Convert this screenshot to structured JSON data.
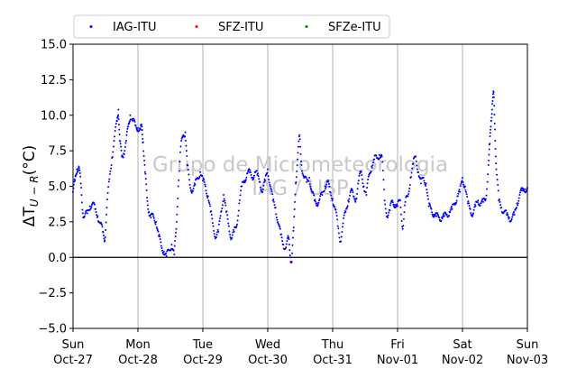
{
  "chart_data": {
    "type": "scatter",
    "ylabel": "ΔT_{U-R}(°C)",
    "ylim": [
      -5.0,
      15.0
    ],
    "yticks": [
      "−5.0",
      "−2.5",
      "0.0",
      "2.5",
      "5.0",
      "7.5",
      "10.0",
      "12.5",
      "15.0"
    ],
    "ytick_values": [
      -5.0,
      -2.5,
      0.0,
      2.5,
      5.0,
      7.5,
      10.0,
      12.5,
      15.0
    ],
    "xlim_days": [
      0,
      7
    ],
    "xticks": [
      {
        "day": "Sun",
        "date": "Oct-27"
      },
      {
        "day": "Mon",
        "date": "Oct-28"
      },
      {
        "day": "Tue",
        "date": "Oct-29"
      },
      {
        "day": "Wed",
        "date": "Oct-30"
      },
      {
        "day": "Thu",
        "date": "Oct-31"
      },
      {
        "day": "Fri",
        "date": "Nov-01"
      },
      {
        "day": "Sat",
        "date": "Nov-02"
      },
      {
        "day": "Sun",
        "date": "Nov-03"
      }
    ],
    "grid": "vertical",
    "hline": 0.0,
    "legend": {
      "placement": "top",
      "entries": [
        {
          "name": "IAG-ITU",
          "color": "#0000ff"
        },
        {
          "name": "SFZ-ITU",
          "color": "#ff0000"
        },
        {
          "name": "SFZe-ITU",
          "color": "#008000"
        }
      ]
    },
    "watermark": [
      "Grupo de Micrometeorologia",
      "IAG / USP"
    ],
    "series": [
      {
        "name": "IAG-ITU",
        "color": "#0000ff",
        "points": [
          [
            0.0,
            4.6
          ],
          [
            0.03,
            5.4
          ],
          [
            0.06,
            6.2
          ],
          [
            0.09,
            6.4
          ],
          [
            0.12,
            5.2
          ],
          [
            0.15,
            3.1
          ],
          [
            0.18,
            2.9
          ],
          [
            0.22,
            3.1
          ],
          [
            0.26,
            3.6
          ],
          [
            0.3,
            3.8
          ],
          [
            0.34,
            3.4
          ],
          [
            0.38,
            2.9
          ],
          [
            0.42,
            2.4
          ],
          [
            0.46,
            1.8
          ],
          [
            0.49,
            1.2
          ],
          [
            0.52,
            3.5
          ],
          [
            0.56,
            5.5
          ],
          [
            0.6,
            7.0
          ],
          [
            0.64,
            8.5
          ],
          [
            0.68,
            9.6
          ],
          [
            0.7,
            10.4
          ],
          [
            0.72,
            8.2
          ],
          [
            0.75,
            7.1
          ],
          [
            0.78,
            7.3
          ],
          [
            0.82,
            8.2
          ],
          [
            0.85,
            9.2
          ],
          [
            0.88,
            10.0
          ],
          [
            0.92,
            9.6
          ],
          [
            0.96,
            9.3
          ],
          [
            1.0,
            9.1
          ],
          [
            1.04,
            9.0
          ],
          [
            1.06,
            9.2
          ],
          [
            1.08,
            8.1
          ],
          [
            1.11,
            6.0
          ],
          [
            1.14,
            4.2
          ],
          [
            1.17,
            3.2
          ],
          [
            1.2,
            2.8
          ],
          [
            1.24,
            2.9
          ],
          [
            1.28,
            2.5
          ],
          [
            1.32,
            1.5
          ],
          [
            1.36,
            0.8
          ],
          [
            1.4,
            0.4
          ],
          [
            1.44,
            0.1
          ],
          [
            1.48,
            0.5
          ],
          [
            1.52,
            0.9
          ],
          [
            1.56,
            0.2
          ],
          [
            1.59,
            2.0
          ],
          [
            1.62,
            5.0
          ],
          [
            1.66,
            7.8
          ],
          [
            1.7,
            8.6
          ],
          [
            1.73,
            8.8
          ],
          [
            1.76,
            6.5
          ],
          [
            1.8,
            5.1
          ],
          [
            1.84,
            4.7
          ],
          [
            1.88,
            5.1
          ],
          [
            1.92,
            5.6
          ],
          [
            1.96,
            6.0
          ],
          [
            2.0,
            5.4
          ],
          [
            2.04,
            5.0
          ],
          [
            2.08,
            4.3
          ],
          [
            2.12,
            3.2
          ],
          [
            2.16,
            2.2
          ],
          [
            2.2,
            1.4
          ],
          [
            2.24,
            1.8
          ],
          [
            2.28,
            3.2
          ],
          [
            2.32,
            4.4
          ],
          [
            2.36,
            3.2
          ],
          [
            2.4,
            2.2
          ],
          [
            2.44,
            1.3
          ],
          [
            2.48,
            1.8
          ],
          [
            2.52,
            2.2
          ],
          [
            2.56,
            3.8
          ],
          [
            2.6,
            5.0
          ],
          [
            2.64,
            5.4
          ],
          [
            2.68,
            5.9
          ],
          [
            2.72,
            6.0
          ],
          [
            2.76,
            5.6
          ],
          [
            2.8,
            6.0
          ],
          [
            2.84,
            5.8
          ],
          [
            2.88,
            5.3
          ],
          [
            2.92,
            4.6
          ],
          [
            2.96,
            5.4
          ],
          [
            3.0,
            6.2
          ],
          [
            3.04,
            5.0
          ],
          [
            3.08,
            4.0
          ],
          [
            3.12,
            3.5
          ],
          [
            3.16,
            2.4
          ],
          [
            3.2,
            1.6
          ],
          [
            3.24,
            0.9
          ],
          [
            3.28,
            0.7
          ],
          [
            3.32,
            1.4
          ],
          [
            3.35,
            0.0
          ],
          [
            3.37,
            -0.3
          ],
          [
            3.4,
            2.1
          ],
          [
            3.43,
            5.2
          ],
          [
            3.46,
            6.9
          ],
          [
            3.49,
            8.6
          ],
          [
            3.52,
            6.5
          ],
          [
            3.56,
            5.6
          ],
          [
            3.6,
            5.3
          ],
          [
            3.64,
            5.6
          ],
          [
            3.68,
            4.6
          ],
          [
            3.72,
            4.0
          ],
          [
            3.76,
            3.8
          ],
          [
            3.8,
            4.1
          ],
          [
            3.84,
            4.4
          ],
          [
            3.88,
            5.0
          ],
          [
            3.92,
            5.4
          ],
          [
            3.96,
            4.6
          ],
          [
            4.0,
            4.1
          ],
          [
            4.04,
            3.4
          ],
          [
            4.08,
            2.2
          ],
          [
            4.12,
            1.1
          ],
          [
            4.16,
            2.4
          ],
          [
            4.2,
            3.2
          ],
          [
            4.24,
            4.0
          ],
          [
            4.28,
            4.7
          ],
          [
            4.32,
            4.3
          ],
          [
            4.36,
            4.1
          ],
          [
            4.4,
            5.4
          ],
          [
            4.44,
            6.0
          ],
          [
            4.48,
            5.0
          ],
          [
            4.52,
            4.4
          ],
          [
            4.56,
            5.8
          ],
          [
            4.6,
            6.4
          ],
          [
            4.64,
            6.9
          ],
          [
            4.68,
            7.0
          ],
          [
            4.72,
            7.2
          ],
          [
            4.76,
            7.1
          ],
          [
            4.8,
            4.0
          ],
          [
            4.84,
            2.9
          ],
          [
            4.88,
            3.3
          ],
          [
            4.92,
            4.0
          ],
          [
            4.96,
            3.7
          ],
          [
            5.0,
            3.6
          ],
          [
            5.04,
            4.0
          ],
          [
            5.08,
            2.0
          ],
          [
            5.12,
            3.9
          ],
          [
            5.16,
            4.3
          ],
          [
            5.2,
            5.6
          ],
          [
            5.24,
            6.6
          ],
          [
            5.28,
            7.1
          ],
          [
            5.32,
            6.0
          ],
          [
            5.36,
            5.2
          ],
          [
            5.4,
            5.6
          ],
          [
            5.44,
            5.2
          ],
          [
            5.48,
            3.6
          ],
          [
            5.52,
            3.4
          ],
          [
            5.56,
            3.0
          ],
          [
            5.6,
            2.9
          ],
          [
            5.64,
            2.8
          ],
          [
            5.68,
            2.8
          ],
          [
            5.72,
            2.9
          ],
          [
            5.76,
            3.0
          ],
          [
            5.8,
            3.2
          ],
          [
            5.84,
            3.4
          ],
          [
            5.88,
            3.8
          ],
          [
            5.92,
            4.3
          ],
          [
            5.96,
            4.6
          ],
          [
            6.0,
            5.6
          ],
          [
            6.04,
            5.0
          ],
          [
            6.08,
            3.8
          ],
          [
            6.12,
            3.4
          ],
          [
            6.16,
            3.0
          ],
          [
            6.2,
            3.6
          ],
          [
            6.24,
            4.0
          ],
          [
            6.28,
            3.8
          ],
          [
            6.32,
            3.9
          ],
          [
            6.36,
            4.1
          ],
          [
            6.4,
            6.5
          ],
          [
            6.42,
            8.0
          ],
          [
            6.44,
            9.6
          ],
          [
            6.46,
            10.8
          ],
          [
            6.48,
            11.6
          ],
          [
            6.5,
            9.0
          ],
          [
            6.52,
            6.2
          ],
          [
            6.56,
            4.0
          ],
          [
            6.6,
            3.5
          ],
          [
            6.64,
            3.2
          ],
          [
            6.68,
            3.0
          ],
          [
            6.72,
            2.8
          ],
          [
            6.76,
            2.7
          ],
          [
            6.8,
            3.0
          ],
          [
            6.84,
            3.8
          ],
          [
            6.88,
            4.4
          ],
          [
            6.92,
            4.7
          ],
          [
            6.96,
            4.8
          ],
          [
            7.0,
            4.9
          ]
        ]
      },
      {
        "name": "SFZ-ITU",
        "color": "#ff0000",
        "points": []
      },
      {
        "name": "SFZe-ITU",
        "color": "#008000",
        "points": []
      }
    ]
  }
}
